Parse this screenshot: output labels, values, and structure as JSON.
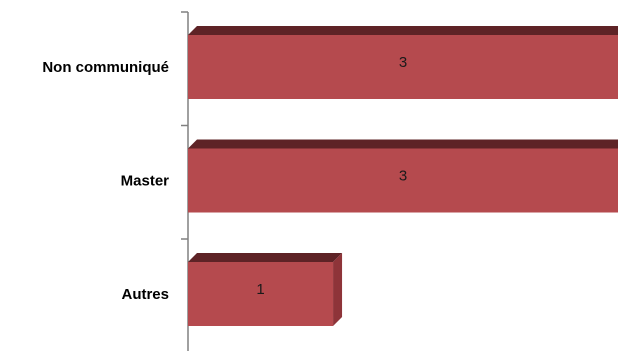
{
  "chart_data": {
    "type": "bar",
    "orientation": "horizontal",
    "style": "3d",
    "categories": [
      "Non communiqué",
      "Master",
      "Autres"
    ],
    "values": [
      3,
      3,
      1
    ],
    "data_labels": [
      "3",
      "3",
      "1"
    ],
    "xlim": [
      0,
      2.93
    ],
    "title": "",
    "xlabel": "",
    "ylabel": "",
    "grid": false,
    "legend": "none",
    "colors": {
      "bar_front": "#B54A4E",
      "bar_top": "#5E2326",
      "bar_side": "#8E3439",
      "axis": "#808080"
    }
  }
}
